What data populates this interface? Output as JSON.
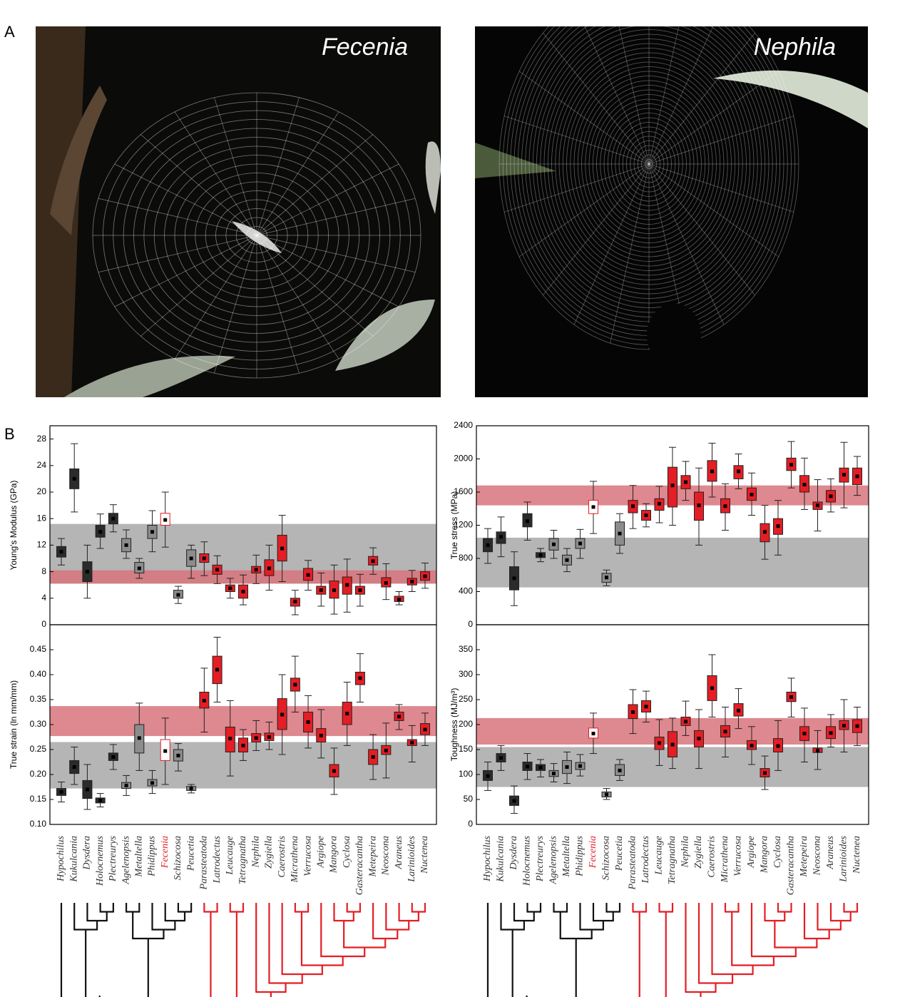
{
  "panel_a": {
    "label": "A",
    "photos": [
      {
        "title": "Fecenia"
      },
      {
        "title": "Nephila"
      }
    ]
  },
  "panel_b": {
    "label": "B"
  },
  "chart_data": [
    {
      "type": "box",
      "ylabel": "Young's Modulus (GPa)",
      "ylim": [
        0,
        30
      ],
      "yticks": [
        0,
        4,
        8,
        12,
        16,
        20,
        24,
        28
      ],
      "bands": [
        {
          "color": "#b5b5b5",
          "range": [
            6.2,
            15.2
          ]
        },
        {
          "color": "#d8737b",
          "range": [
            6.2,
            8.2
          ]
        }
      ],
      "colors": [
        "#2b2b2b",
        "#2b2b2b",
        "#2b2b2b",
        "#2b2b2b",
        "#2b2b2b",
        "#8c8c8c",
        "#8c8c8c",
        "#8c8c8c",
        "#ffffff",
        "#8c8c8c",
        "#8c8c8c",
        "#e31e24",
        "#e31e24",
        "#e31e24",
        "#e31e24",
        "#e31e24",
        "#e31e24",
        "#e31e24",
        "#e31e24",
        "#e31e24",
        "#e31e24",
        "#e31e24",
        "#e31e24",
        "#e31e24",
        "#e31e24",
        "#e31e24",
        "#e31e24",
        "#e31e24",
        "#e31e24"
      ],
      "median": [
        11,
        22,
        8,
        14,
        16,
        12,
        8.5,
        14,
        15.8,
        4.5,
        10,
        10,
        8.3,
        5.5,
        5,
        8.3,
        8.5,
        11.5,
        3.5,
        7.5,
        5.2,
        5.2,
        6,
        5.2,
        9.6,
        6.3,
        3.8,
        6.5,
        7.3
      ],
      "q1": [
        10.2,
        20.5,
        6.5,
        13.2,
        15.2,
        11,
        7.8,
        13,
        15,
        4,
        8.8,
        9.4,
        7.6,
        5,
        4,
        7.8,
        7.4,
        9.6,
        2.8,
        6.7,
        4.6,
        4,
        4.6,
        4.6,
        9,
        5.7,
        3.5,
        6,
        6.7
      ],
      "q3": [
        11.8,
        23.5,
        9.5,
        15,
        16.8,
        13,
        9.4,
        15,
        16.8,
        5.2,
        11.3,
        10.7,
        9,
        6,
        6,
        8.8,
        9.8,
        13.5,
        4,
        8.5,
        5.8,
        6.6,
        7.2,
        5.8,
        10.3,
        7.1,
        4.3,
        7,
        8
      ],
      "whisker_low": [
        9,
        17,
        4,
        11.5,
        14,
        10,
        7,
        11,
        11.7,
        3.2,
        7,
        7.4,
        6.2,
        4,
        3,
        6.2,
        5.2,
        6.5,
        1.5,
        5.2,
        2.8,
        1.6,
        1.9,
        2.8,
        7.6,
        3.8,
        3,
        5,
        5.5
      ],
      "whisker_high": [
        13,
        27.3,
        12,
        16.7,
        18.1,
        14.3,
        10,
        17.2,
        20,
        5.8,
        12,
        12.5,
        10.4,
        7,
        7.5,
        10.5,
        12,
        16.5,
        5.2,
        9.7,
        7.8,
        9,
        9.9,
        7.6,
        11.6,
        9.2,
        5,
        8.2,
        9.3
      ]
    },
    {
      "type": "box",
      "ylabel": "True stress (MPa)",
      "ylim": [
        0,
        2400
      ],
      "yticks": [
        0,
        400,
        800,
        1200,
        1600,
        2000,
        2400
      ],
      "bands": [
        {
          "color": "#b5b5b5",
          "range": [
            450,
            1050
          ]
        },
        {
          "color": "#d8737b",
          "range": [
            1440,
            1680
          ]
        }
      ],
      "colors": [
        "#2b2b2b",
        "#2b2b2b",
        "#2b2b2b",
        "#2b2b2b",
        "#2b2b2b",
        "#8c8c8c",
        "#8c8c8c",
        "#8c8c8c",
        "#ffffff",
        "#8c8c8c",
        "#8c8c8c",
        "#e31e24",
        "#e31e24",
        "#e31e24",
        "#e31e24",
        "#e31e24",
        "#e31e24",
        "#e31e24",
        "#e31e24",
        "#e31e24",
        "#e31e24",
        "#e31e24",
        "#e31e24",
        "#e31e24",
        "#e31e24",
        "#e31e24",
        "#e31e24",
        "#e31e24",
        "#e31e24"
      ],
      "median": [
        960,
        1060,
        560,
        1250,
        840,
        970,
        780,
        980,
        1420,
        570,
        1100,
        1430,
        1320,
        1460,
        1680,
        1720,
        1440,
        1850,
        1430,
        1850,
        1570,
        1120,
        1190,
        1930,
        1690,
        1440,
        1550,
        1810,
        1790
      ],
      "q1": [
        880,
        980,
        420,
        1180,
        810,
        900,
        720,
        920,
        1340,
        510,
        960,
        1350,
        1260,
        1380,
        1420,
        1640,
        1260,
        1730,
        1350,
        1760,
        1500,
        1000,
        1090,
        1860,
        1600,
        1390,
        1480,
        1720,
        1690
      ],
      "q3": [
        1040,
        1120,
        700,
        1340,
        870,
        1040,
        840,
        1040,
        1500,
        620,
        1240,
        1500,
        1380,
        1520,
        1900,
        1800,
        1600,
        1980,
        1520,
        1920,
        1650,
        1220,
        1280,
        2010,
        1800,
        1480,
        1620,
        1890,
        1890
      ],
      "whisker_low": [
        740,
        820,
        230,
        1020,
        760,
        800,
        640,
        800,
        1100,
        470,
        860,
        1160,
        1180,
        1230,
        1200,
        1500,
        960,
        1540,
        1140,
        1640,
        1320,
        790,
        840,
        1650,
        1390,
        1130,
        1360,
        1410,
        1560
      ],
      "whisker_high": [
        1160,
        1300,
        880,
        1480,
        920,
        1140,
        920,
        1150,
        1730,
        660,
        1340,
        1680,
        1460,
        1670,
        2140,
        1970,
        1890,
        2190,
        1700,
        2060,
        1830,
        1440,
        1500,
        2210,
        2010,
        1750,
        1760,
        2200,
        2030
      ]
    },
    {
      "type": "box",
      "ylabel": "True strain (ln mm/mm)",
      "ylim": [
        0.1,
        0.5
      ],
      "yticks": [
        {
          "value": 0.1,
          "label": "0.10"
        },
        0.15,
        {
          "value": 0.2,
          "label": "0.20"
        },
        0.25,
        {
          "value": 0.3,
          "label": "0.30"
        },
        0.35,
        {
          "value": 0.4,
          "label": "0.40"
        },
        0.45
      ],
      "bands": [
        {
          "color": "#b5b5b5",
          "range": [
            0.172,
            0.265
          ]
        },
        {
          "color": "#d8737b",
          "range": [
            0.277,
            0.337
          ]
        }
      ],
      "categories": [
        "Hypochilus",
        "Kukulcania",
        "Dysdera",
        "Holocnemus",
        "Plectreurys",
        "Agelenopsis",
        "Metaltella",
        "Phidippus",
        "Fecenia",
        "Schizocosa",
        "Peucetia",
        "Parasteatoda",
        "Latrodectus",
        "Leucauge",
        "Tetragnatha",
        "Nephila",
        "Zygiella",
        "Caerostris",
        "Micrathena",
        "Verrucosa",
        "Argiope",
        "Mangora",
        "Cyclosa",
        "Gasteracantha",
        "Metepeira",
        "Neoscona",
        "Araneus",
        "Larinioides",
        "Nuctenea"
      ],
      "colors": [
        "#2b2b2b",
        "#2b2b2b",
        "#2b2b2b",
        "#2b2b2b",
        "#2b2b2b",
        "#8c8c8c",
        "#8c8c8c",
        "#8c8c8c",
        "#ffffff",
        "#8c8c8c",
        "#8c8c8c",
        "#e31e24",
        "#e31e24",
        "#e31e24",
        "#e31e24",
        "#e31e24",
        "#e31e24",
        "#e31e24",
        "#e31e24",
        "#e31e24",
        "#e31e24",
        "#e31e24",
        "#e31e24",
        "#e31e24",
        "#e31e24",
        "#e31e24",
        "#e31e24",
        "#e31e24",
        "#e31e24"
      ],
      "median": [
        0.165,
        0.215,
        0.17,
        0.148,
        0.235,
        0.178,
        0.273,
        0.183,
        0.247,
        0.238,
        0.172,
        0.348,
        0.41,
        0.272,
        0.258,
        0.273,
        0.275,
        0.32,
        0.38,
        0.305,
        0.278,
        0.207,
        0.322,
        0.393,
        0.235,
        0.248,
        0.316,
        0.264,
        0.29
      ],
      "q1": [
        0.158,
        0.202,
        0.152,
        0.143,
        0.228,
        0.172,
        0.243,
        0.177,
        0.228,
        0.227,
        0.168,
        0.333,
        0.382,
        0.245,
        0.245,
        0.265,
        0.268,
        0.29,
        0.367,
        0.285,
        0.265,
        0.195,
        0.3,
        0.38,
        0.22,
        0.24,
        0.308,
        0.258,
        0.28
      ],
      "q3": [
        0.172,
        0.228,
        0.188,
        0.153,
        0.243,
        0.184,
        0.3,
        0.19,
        0.27,
        0.25,
        0.176,
        0.365,
        0.437,
        0.295,
        0.273,
        0.282,
        0.283,
        0.352,
        0.393,
        0.325,
        0.292,
        0.22,
        0.345,
        0.405,
        0.25,
        0.258,
        0.325,
        0.27,
        0.302
      ],
      "whisker_low": [
        0.145,
        0.18,
        0.13,
        0.135,
        0.21,
        0.158,
        0.208,
        0.162,
        0.18,
        0.207,
        0.163,
        0.285,
        0.345,
        0.197,
        0.228,
        0.248,
        0.25,
        0.24,
        0.325,
        0.253,
        0.233,
        0.16,
        0.258,
        0.345,
        0.19,
        0.193,
        0.29,
        0.225,
        0.258
      ],
      "whisker_high": [
        0.185,
        0.255,
        0.22,
        0.162,
        0.26,
        0.198,
        0.343,
        0.208,
        0.313,
        0.262,
        0.18,
        0.413,
        0.475,
        0.348,
        0.29,
        0.308,
        0.305,
        0.4,
        0.437,
        0.358,
        0.33,
        0.253,
        0.385,
        0.442,
        0.28,
        0.303,
        0.34,
        0.298,
        0.323
      ]
    },
    {
      "type": "box",
      "ylabel": "Toughness (MJ/m³)",
      "ylim": [
        0,
        400
      ],
      "yticks": [
        0,
        50,
        100,
        150,
        200,
        250,
        300,
        350
      ],
      "bands": [
        {
          "color": "#b5b5b5",
          "range": [
            75,
            155
          ]
        },
        {
          "color": "#d8737b",
          "range": [
            160,
            213
          ]
        }
      ],
      "categories": [
        "Hypochilus",
        "Kukulcania",
        "Dysdera",
        "Holocnemus",
        "Plectreurys",
        "Agelenopsis",
        "Metaltella",
        "Phidippus",
        "Fecenia",
        "Schizocosa",
        "Peucetia",
        "Parasteatoda",
        "Latrodectus",
        "Leucauge",
        "Tetragnatha",
        "Nephila",
        "Zygiella",
        "Caerostris",
        "Micrathena",
        "Verrucosa",
        "Argiope",
        "Mangora",
        "Cyclosa",
        "Gasteracantha",
        "Metepeira",
        "Neoscona",
        "Araneus",
        "Larinioides",
        "Nuctenea"
      ],
      "colors": [
        "#2b2b2b",
        "#2b2b2b",
        "#2b2b2b",
        "#2b2b2b",
        "#2b2b2b",
        "#8c8c8c",
        "#8c8c8c",
        "#8c8c8c",
        "#ffffff",
        "#8c8c8c",
        "#8c8c8c",
        "#e31e24",
        "#e31e24",
        "#e31e24",
        "#e31e24",
        "#e31e24",
        "#e31e24",
        "#e31e24",
        "#e31e24",
        "#e31e24",
        "#e31e24",
        "#e31e24",
        "#e31e24",
        "#e31e24",
        "#e31e24",
        "#e31e24",
        "#e31e24",
        "#e31e24",
        "#e31e24"
      ],
      "median": [
        97,
        133,
        47,
        116,
        114,
        102,
        115,
        117,
        182,
        60,
        108,
        225,
        236,
        163,
        160,
        206,
        172,
        273,
        186,
        228,
        158,
        103,
        157,
        255,
        182,
        148,
        183,
        198,
        197
      ],
      "q1": [
        88,
        125,
        38,
        108,
        108,
        96,
        102,
        110,
        173,
        55,
        98,
        212,
        225,
        150,
        135,
        198,
        155,
        248,
        175,
        217,
        150,
        95,
        145,
        246,
        168,
        144,
        172,
        190,
        184
      ],
      "q3": [
        108,
        142,
        57,
        125,
        120,
        108,
        128,
        124,
        193,
        65,
        120,
        240,
        248,
        175,
        186,
        215,
        188,
        298,
        198,
        242,
        168,
        112,
        172,
        265,
        196,
        153,
        196,
        208,
        210
      ],
      "whisker_low": [
        68,
        108,
        22,
        90,
        95,
        85,
        82,
        97,
        142,
        50,
        88,
        182,
        205,
        118,
        112,
        178,
        112,
        215,
        135,
        192,
        120,
        70,
        108,
        215,
        125,
        110,
        155,
        145,
        158
      ],
      "whisker_high": [
        125,
        158,
        77,
        142,
        130,
        122,
        145,
        140,
        223,
        72,
        130,
        270,
        267,
        210,
        213,
        247,
        230,
        340,
        235,
        272,
        196,
        137,
        208,
        293,
        233,
        188,
        220,
        250,
        235
      ]
    }
  ]
}
